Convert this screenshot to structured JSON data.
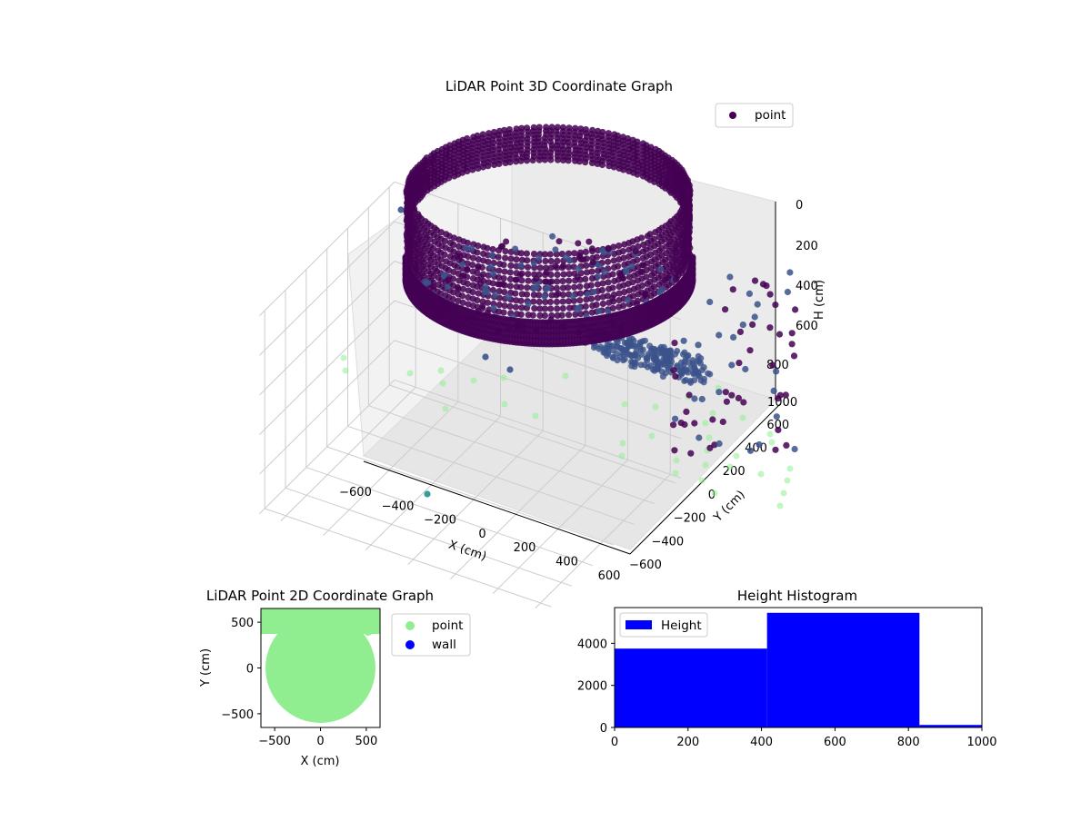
{
  "colors": {
    "point_dark": "#440154",
    "point_mid": "#3b528b",
    "point_teal": "#21918c",
    "point_light": "#90ee90",
    "wall": "#0000ff",
    "hist": "#0000ff",
    "pane": "#f2f2f2",
    "grid": "#cccccc"
  },
  "chart_data": [
    {
      "type": "scatter",
      "title": "LiDAR Point 3D Coordinate Graph",
      "xlabel": "X (cm)",
      "ylabel": "Y (cm)",
      "zlabel": "H (cm)",
      "xlim": [
        -700,
        650
      ],
      "ylim": [
        -650,
        650
      ],
      "zlim": [
        1000,
        0
      ],
      "z_inverted": true,
      "xticks": [
        "−600",
        "−400",
        "−200",
        "0",
        "200",
        "400",
        "600"
      ],
      "yticks": [
        "−600",
        "−400",
        "−200",
        "0",
        "200",
        "400",
        "600"
      ],
      "zticks": [
        "0",
        "200",
        "400",
        "600",
        "800",
        "1000"
      ],
      "legend": {
        "entries": [
          "point"
        ],
        "position": "top-right"
      },
      "grid": true,
      "description_of_structure": "dense ring of points near height 150-500 forming a bowl, with sparse scatter points at various heights"
    },
    {
      "type": "scatter",
      "title": "LiDAR Point 2D Coordinate Graph",
      "xlabel": "X (cm)",
      "ylabel": "Y (cm)",
      "xlim": [
        -650,
        650
      ],
      "ylim": [
        -650,
        650
      ],
      "xticks": [
        "−500",
        "0",
        "500"
      ],
      "yticks": [
        "−500",
        "0",
        "500"
      ],
      "legend": {
        "entries": [
          "point",
          "wall"
        ],
        "position": "outside-right"
      },
      "series": [
        {
          "name": "point",
          "shape": "disc",
          "center": [
            0,
            0
          ],
          "radius": 600
        },
        {
          "name": "wall",
          "points": []
        }
      ]
    },
    {
      "type": "bar",
      "title": "Height Histogram",
      "xlim": [
        0,
        1000
      ],
      "ylim": [
        0,
        5700
      ],
      "xticks": [
        "0",
        "200",
        "400",
        "600",
        "800",
        "1000"
      ],
      "yticks": [
        "0",
        "2000",
        "4000"
      ],
      "legend": {
        "entries": [
          "Height"
        ],
        "position": "upper-left"
      },
      "bins": [
        {
          "x0": 0,
          "x1": 415,
          "count": 3750
        },
        {
          "x0": 415,
          "x1": 830,
          "count": 5450
        },
        {
          "x0": 830,
          "x1": 1000,
          "count": 120
        }
      ]
    }
  ]
}
